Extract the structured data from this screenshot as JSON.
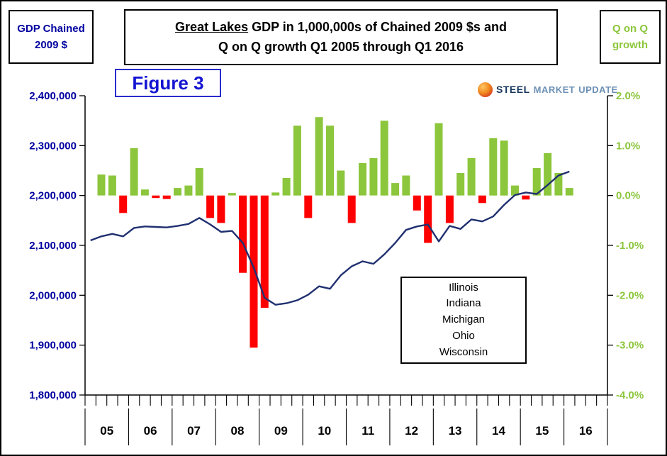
{
  "header": {
    "left_box": {
      "line1": "GDP Chained",
      "line2": "2009 $"
    },
    "title": {
      "underlined": "Great Lakes",
      "line1_rest": " GDP in 1,000,000s of Chained 2009 $s and",
      "line2": "Q on Q growth Q1 2005 through Q1 2016"
    },
    "right_box": {
      "line1": "Q on Q",
      "line2": "growth"
    },
    "figure_label": "Figure 3",
    "logo": {
      "steel": "STEEL",
      "market": "MARKET",
      "update": "UPDATE"
    }
  },
  "legend": {
    "states": [
      "Illinois",
      "Indiana",
      "Michigan",
      "Ohio",
      "Wisconsin"
    ]
  },
  "colors": {
    "positive_green": "#8CC63C",
    "negative_red": "#FF0000",
    "gdp_line_navy": "#203070",
    "axis_label_navy": "#0000A0",
    "figure_blue": "#1414D2"
  },
  "chart_data": {
    "type": "combo",
    "title": "Great Lakes GDP in 1,000,000s of Chained 2009 $s and Q on Q growth Q1 2005 through Q1 2016",
    "x": {
      "quarters": [
        "2005Q1",
        "2005Q2",
        "2005Q3",
        "2005Q4",
        "2006Q1",
        "2006Q2",
        "2006Q3",
        "2006Q4",
        "2007Q1",
        "2007Q2",
        "2007Q3",
        "2007Q4",
        "2008Q1",
        "2008Q2",
        "2008Q3",
        "2008Q4",
        "2009Q1",
        "2009Q2",
        "2009Q3",
        "2009Q4",
        "2010Q1",
        "2010Q2",
        "2010Q3",
        "2010Q4",
        "2011Q1",
        "2011Q2",
        "2011Q3",
        "2011Q4",
        "2012Q1",
        "2012Q2",
        "2012Q3",
        "2012Q4",
        "2013Q1",
        "2013Q2",
        "2013Q3",
        "2013Q4",
        "2014Q1",
        "2014Q2",
        "2014Q3",
        "2014Q4",
        "2015Q1",
        "2015Q2",
        "2015Q3",
        "2015Q4",
        "2016Q1"
      ],
      "year_labels": [
        "05",
        "06",
        "07",
        "08",
        "09",
        "10",
        "11",
        "12",
        "13",
        "14",
        "15",
        "16"
      ]
    },
    "left_axis": {
      "label": "GDP Chained 2009 $",
      "min": 1800000,
      "max": 2400000,
      "step": 100000,
      "tick_labels": [
        "2,400,000",
        "2,300,000",
        "2,200,000",
        "2,100,000",
        "2,000,000",
        "1,900,000",
        "1,800,000"
      ]
    },
    "right_axis": {
      "label": "Q on Q growth",
      "min": -4.0,
      "max": 2.0,
      "step": 1.0,
      "tick_labels": [
        "2.0%",
        "1.0%",
        "0.0%",
        "-1.0%",
        "-2.0%",
        "-3.0%",
        "-4.0%"
      ]
    },
    "series": [
      {
        "name": "GDP Chained 2009 $ (level)",
        "type": "line",
        "axis": "left",
        "color": "#203070",
        "values": [
          2110000,
          2118000,
          2123000,
          2118000,
          2135000,
          2138000,
          2137000,
          2136000,
          2139000,
          2143000,
          2155000,
          2142000,
          2127000,
          2129000,
          2105000,
          2055000,
          1995000,
          1981000,
          1984000,
          1990000,
          2001000,
          2018000,
          2013000,
          2040000,
          2058000,
          2068000,
          2063000,
          2082000,
          2105000,
          2131000,
          2138000,
          2142000,
          2108000,
          2139000,
          2133000,
          2152000,
          2148000,
          2158000,
          2181000,
          2201000,
          2206000,
          2203000,
          2221000,
          2240000,
          2248000
        ]
      },
      {
        "name": "Q on Q growth %",
        "type": "bar",
        "axis": "right",
        "positive_color": "#8CC63C",
        "negative_color": "#FF0000",
        "values": [
          null,
          0.42,
          0.4,
          -0.35,
          0.95,
          0.12,
          -0.05,
          -0.07,
          0.15,
          0.2,
          0.55,
          -0.45,
          -0.55,
          0.05,
          -1.55,
          -3.05,
          -2.25,
          0.06,
          0.35,
          1.4,
          -0.45,
          1.57,
          1.4,
          0.5,
          -0.55,
          0.65,
          0.75,
          1.5,
          0.25,
          0.4,
          -0.3,
          -0.95,
          1.45,
          -0.55,
          0.45,
          0.75,
          -0.15,
          1.15,
          1.1,
          0.2,
          -0.08,
          0.55,
          0.85,
          0.45,
          0.15
        ]
      }
    ],
    "legend_position": "inside-lower-right",
    "grid": false
  }
}
